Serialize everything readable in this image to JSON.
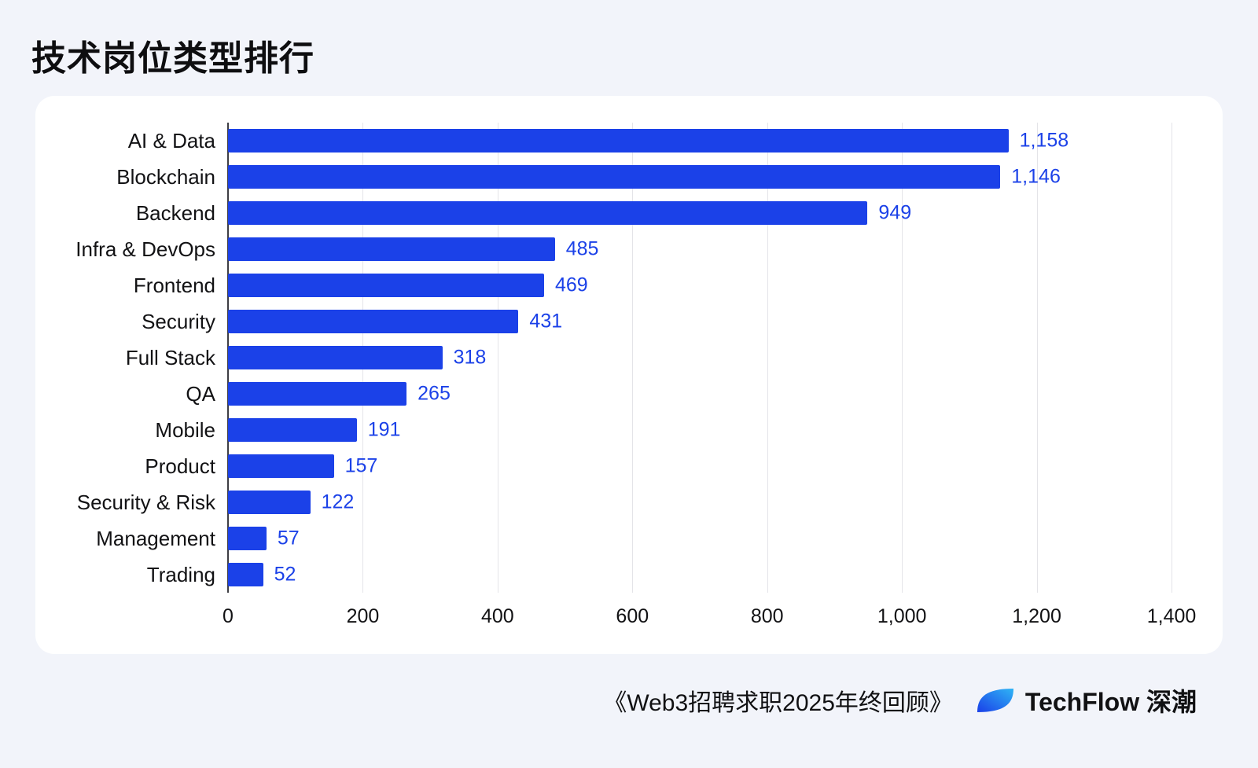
{
  "page": {
    "title": "技术岗位类型排行",
    "footer": {
      "source_text": "《Web3招聘求职2025年终回顾》",
      "brand_name": "TechFlow 深潮"
    }
  },
  "chart_data": {
    "type": "bar",
    "orientation": "horizontal",
    "title": "技术岗位类型排行",
    "categories": [
      "AI & Data",
      "Blockchain",
      "Backend",
      "Infra & DevOps",
      "Frontend",
      "Security",
      "Full Stack",
      "QA",
      "Mobile",
      "Product",
      "Security & Risk",
      "Management",
      "Trading"
    ],
    "values": [
      1158,
      1146,
      949,
      485,
      469,
      431,
      318,
      265,
      191,
      157,
      122,
      57,
      52
    ],
    "value_labels": [
      "1,158",
      "1,146",
      "949",
      "485",
      "469",
      "431",
      "318",
      "265",
      "191",
      "157",
      "122",
      "57",
      "52"
    ],
    "xlim": [
      0,
      1400
    ],
    "x_ticks": [
      0,
      200,
      400,
      600,
      800,
      1000,
      1200,
      1400
    ],
    "x_tick_labels": [
      "0",
      "200",
      "400",
      "600",
      "800",
      "1,000",
      "1,200",
      "1,400"
    ],
    "grid": true,
    "legend": false,
    "colors": {
      "bar": "#1b41e8",
      "value_label": "#1b41e8",
      "background": "#f2f4fa",
      "card": "#ffffff",
      "gridline": "#e4e4e8",
      "axis_line": "#3e3e44",
      "text": "#121214"
    }
  }
}
